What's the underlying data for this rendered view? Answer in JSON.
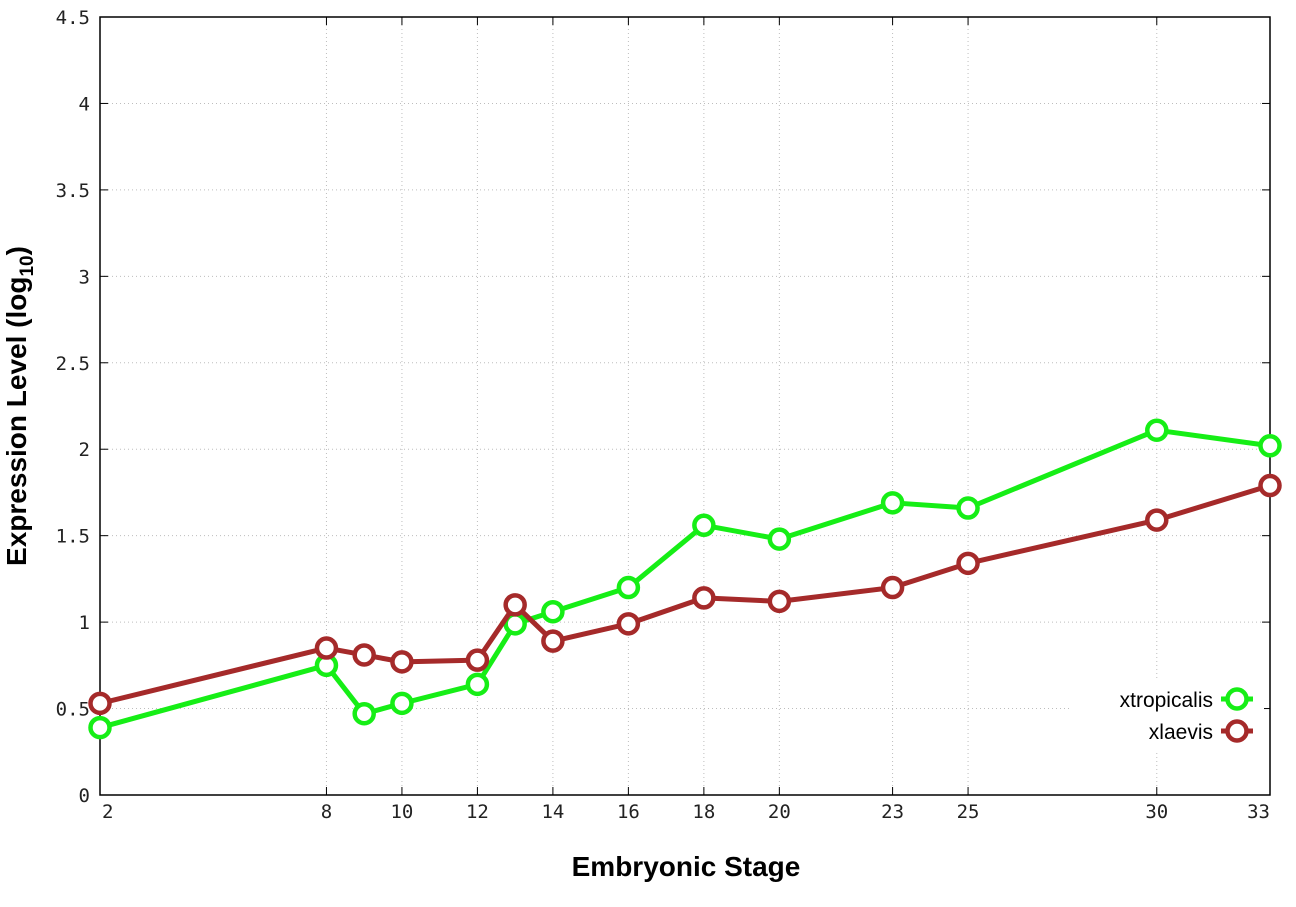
{
  "chart_data": {
    "type": "line",
    "x": [
      2,
      8,
      9,
      10,
      12,
      13,
      14,
      16,
      18,
      20,
      23,
      25,
      30,
      33
    ],
    "xticks": [
      "2",
      "8",
      "10",
      "12",
      "14",
      "16",
      "18",
      "20",
      "23",
      "25",
      "30",
      "33"
    ],
    "yticks": [
      "0",
      "0.5",
      "1",
      "1.5",
      "2",
      "2.5",
      "3",
      "3.5",
      "4",
      "4.5"
    ],
    "xlim": [
      2,
      33
    ],
    "ylim": [
      0,
      4.5
    ],
    "xlabel": "Embryonic Stage",
    "ylabel_main": "Expression Level (log",
    "ylabel_sub": "10",
    "ylabel_close": ")",
    "grid": true,
    "legend_position": "bottom-right",
    "series": [
      {
        "name": "xtropicalis",
        "color": "#16ee16",
        "values": [
          0.39,
          0.75,
          0.47,
          0.53,
          0.64,
          0.99,
          1.06,
          1.2,
          1.56,
          1.48,
          1.69,
          1.66,
          2.11,
          2.02
        ]
      },
      {
        "name": "xlaevis",
        "color": "#a52a2a",
        "values": [
          0.53,
          0.85,
          0.81,
          0.77,
          0.78,
          1.1,
          0.89,
          0.99,
          1.14,
          1.12,
          1.2,
          1.34,
          1.59,
          1.79
        ]
      }
    ]
  }
}
